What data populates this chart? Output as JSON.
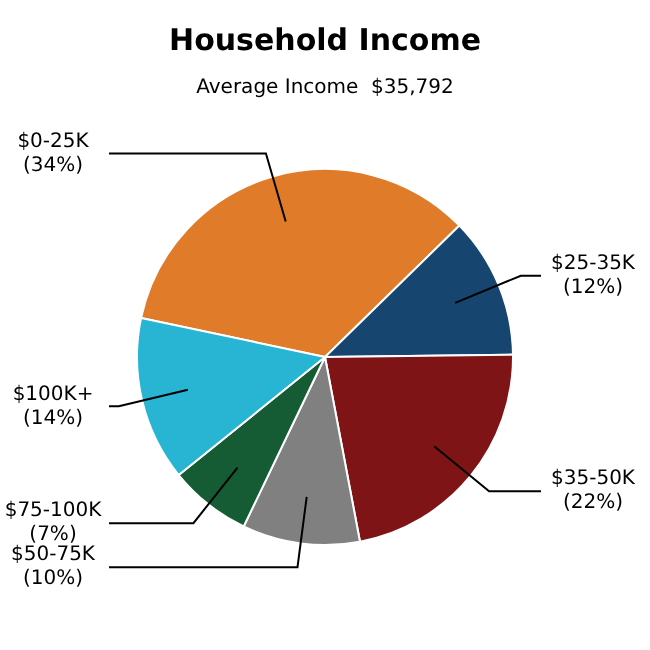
{
  "chart_data": {
    "type": "pie",
    "title": "Household Income",
    "subtitle": "Average Income  $35,792",
    "categories": [
      "$0-25K",
      "$25-35K",
      "$35-50K",
      "$50-75K",
      "$75-100K",
      "$100K+"
    ],
    "values": [
      34,
      12,
      22,
      10,
      7,
      14
    ],
    "value_labels": [
      "(34%)",
      "(12%)",
      "(22%)",
      "(10%)",
      "(7%)",
      "(14%)"
    ],
    "colors": [
      "#e07b2a",
      "#16456f",
      "#7f1416",
      "#808080",
      "#155c35",
      "#27b5d3"
    ],
    "legend": false
  }
}
